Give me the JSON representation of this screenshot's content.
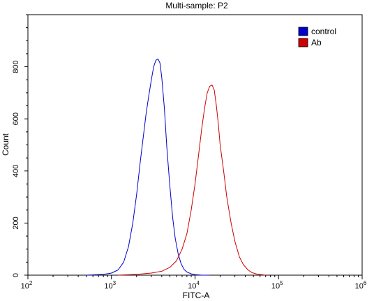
{
  "chart_data": {
    "type": "line",
    "title": "Multi-sample: P2",
    "xlabel": "FITC-A",
    "ylabel": "Count",
    "xscale": "log",
    "xlim": [
      100,
      1000000
    ],
    "ylim": [
      0,
      1000
    ],
    "x_ticks": [
      100,
      1000,
      10000,
      100000,
      1000000
    ],
    "x_tick_labels": [
      {
        "base": "10",
        "exp": "2"
      },
      {
        "base": "10",
        "exp": "3"
      },
      {
        "base": "10",
        "exp": "4"
      },
      {
        "base": "10",
        "exp": "5"
      },
      {
        "base": "10",
        "exp": "6"
      }
    ],
    "y_ticks": [
      0,
      200,
      400,
      600,
      800
    ],
    "y_tick_labels": [
      "0",
      "200",
      "400",
      "600",
      "800"
    ],
    "grid": false,
    "legend_position": "top-right",
    "series": [
      {
        "name": "control",
        "color": "#0000cc",
        "x": [
          500,
          800,
          1000,
          1200,
          1400,
          1600,
          1800,
          2000,
          2200,
          2400,
          2600,
          2800,
          3000,
          3200,
          3400,
          3600,
          3800,
          4000,
          4300,
          4600,
          5000,
          5400,
          5800,
          6300,
          6800,
          7400,
          8000,
          9000,
          10000,
          12000,
          15000
        ],
        "y": [
          0,
          3,
          8,
          20,
          50,
          110,
          200,
          310,
          430,
          530,
          620,
          690,
          750,
          800,
          825,
          830,
          815,
          760,
          640,
          490,
          340,
          220,
          140,
          80,
          45,
          22,
          12,
          5,
          2,
          0,
          0
        ]
      },
      {
        "name": "Ab",
        "color": "#cc0000",
        "x": [
          1200,
          2000,
          3000,
          4000,
          5000,
          6000,
          7000,
          8000,
          9000,
          10000,
          11000,
          12000,
          13000,
          14000,
          15000,
          16000,
          17000,
          18000,
          19000,
          20000,
          22000,
          24000,
          27000,
          30000,
          34000,
          38000,
          43000,
          48000,
          55000,
          62000,
          70000
        ],
        "y": [
          0,
          3,
          8,
          15,
          30,
          55,
          100,
          160,
          250,
          350,
          460,
          560,
          640,
          700,
          725,
          730,
          710,
          650,
          580,
          500,
          400,
          300,
          200,
          130,
          70,
          40,
          20,
          10,
          4,
          2,
          0
        ]
      }
    ]
  }
}
